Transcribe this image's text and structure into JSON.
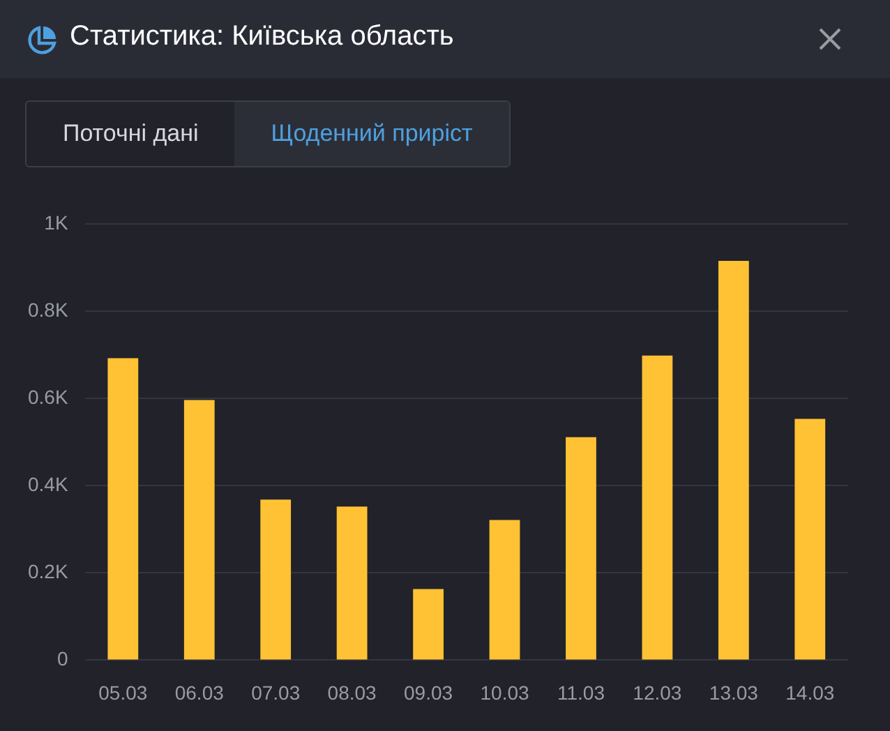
{
  "chart_data": {
    "type": "bar",
    "title": "Статистика: Київська область",
    "annotations": [
      "Поточні дані",
      "Щоденний приріст"
    ],
    "categories": [
      "05.03",
      "06.03",
      "07.03",
      "08.03",
      "09.03",
      "10.03",
      "11.03",
      "12.03",
      "13.03",
      "14.03"
    ],
    "values": [
      692,
      596,
      368,
      352,
      163,
      321,
      511,
      698,
      915,
      553
    ],
    "color": "#ffc234",
    "ylim": [
      0,
      1000
    ],
    "yticks": [
      {
        "value": 0,
        "label": "0"
      },
      {
        "value": 200,
        "label": "0.2K"
      },
      {
        "value": 400,
        "label": "0.4K"
      },
      {
        "value": 600,
        "label": "0.6K"
      },
      {
        "value": 800,
        "label": "0.8K"
      },
      {
        "value": 1000,
        "label": "1K"
      }
    ],
    "grid": "y",
    "legend": false
  }
}
